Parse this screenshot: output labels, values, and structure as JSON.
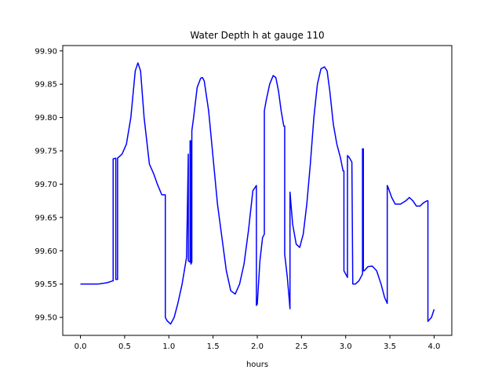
{
  "chart_data": {
    "type": "line",
    "title": "Water Depth h at gauge 110",
    "xlabel": "hours",
    "ylabel": "",
    "xlim": [
      -0.2,
      4.2
    ],
    "ylim": [
      99.473,
      99.908
    ],
    "xticks": [
      "0.0",
      "0.5",
      "1.0",
      "1.5",
      "2.0",
      "2.5",
      "3.0",
      "3.5",
      "4.0"
    ],
    "yticks": [
      "99.50",
      "99.55",
      "99.60",
      "99.65",
      "99.70",
      "99.75",
      "99.80",
      "99.85",
      "99.90"
    ],
    "grid": false,
    "line_color": "#0000ff",
    "series": [
      {
        "x": [
          0.0,
          0.2,
          0.3,
          0.37,
          0.37,
          0.4,
          0.4,
          0.42,
          0.42,
          0.47,
          0.52,
          0.57,
          0.62,
          0.65,
          0.68,
          0.72,
          0.78,
          0.83,
          0.87,
          0.92,
          0.96,
          0.96,
          0.98,
          1.02,
          1.06,
          1.1,
          1.15,
          1.2,
          1.22,
          1.22,
          1.24,
          1.24,
          1.25,
          1.25,
          1.26,
          1.26,
          1.28,
          1.32,
          1.36,
          1.38,
          1.4,
          1.45,
          1.5,
          1.55,
          1.6,
          1.65,
          1.7,
          1.75,
          1.8,
          1.85,
          1.9,
          1.95,
          1.99,
          1.99,
          2.0,
          2.03,
          2.06,
          2.08,
          2.08,
          2.1,
          2.14,
          2.18,
          2.21,
          2.24,
          2.27,
          2.3,
          2.31,
          2.31,
          2.34,
          2.37,
          2.37,
          2.4,
          2.44,
          2.48,
          2.52,
          2.56,
          2.6,
          2.64,
          2.68,
          2.72,
          2.76,
          2.79,
          2.82,
          2.86,
          2.9,
          2.94,
          2.97,
          2.98,
          2.98,
          3.02,
          3.02,
          3.04,
          3.04,
          3.07,
          3.07,
          3.08,
          3.11,
          3.15,
          3.19,
          3.19,
          3.2,
          3.2,
          3.21,
          3.21,
          3.25,
          3.3,
          3.35,
          3.4,
          3.44,
          3.47,
          3.47,
          3.48,
          3.52,
          3.56,
          3.62,
          3.68,
          3.72,
          3.76,
          3.8,
          3.84,
          3.88,
          3.92,
          3.93,
          3.93,
          3.97,
          4.0
        ],
        "y": [
          99.55,
          99.55,
          99.552,
          99.555,
          99.738,
          99.739,
          99.557,
          99.557,
          99.739,
          99.745,
          99.76,
          99.8,
          99.87,
          99.882,
          99.87,
          99.8,
          99.73,
          99.715,
          99.7,
          99.684,
          99.684,
          99.5,
          99.495,
          99.49,
          99.5,
          99.52,
          99.55,
          99.59,
          99.745,
          99.585,
          99.583,
          99.765,
          99.765,
          99.58,
          99.583,
          99.78,
          99.8,
          99.845,
          99.859,
          99.86,
          99.855,
          99.81,
          99.74,
          99.67,
          99.62,
          99.57,
          99.54,
          99.535,
          99.55,
          99.58,
          99.63,
          99.69,
          99.698,
          99.518,
          99.52,
          99.585,
          99.62,
          99.625,
          99.81,
          99.825,
          99.85,
          99.863,
          99.86,
          99.84,
          99.81,
          99.787,
          99.787,
          99.595,
          99.56,
          99.513,
          99.688,
          99.64,
          99.61,
          99.605,
          99.625,
          99.67,
          99.73,
          99.8,
          99.85,
          99.873,
          99.876,
          99.87,
          99.84,
          99.79,
          99.76,
          99.74,
          99.72,
          99.72,
          99.57,
          99.56,
          99.743,
          99.74,
          99.74,
          99.733,
          99.733,
          99.55,
          99.55,
          99.555,
          99.565,
          99.753,
          99.753,
          99.57,
          99.57,
          99.57,
          99.576,
          99.577,
          99.57,
          99.55,
          99.53,
          99.521,
          99.698,
          99.695,
          99.68,
          99.67,
          99.67,
          99.675,
          99.68,
          99.675,
          99.667,
          99.667,
          99.672,
          99.675,
          99.675,
          99.494,
          99.5,
          99.512
        ]
      }
    ]
  }
}
